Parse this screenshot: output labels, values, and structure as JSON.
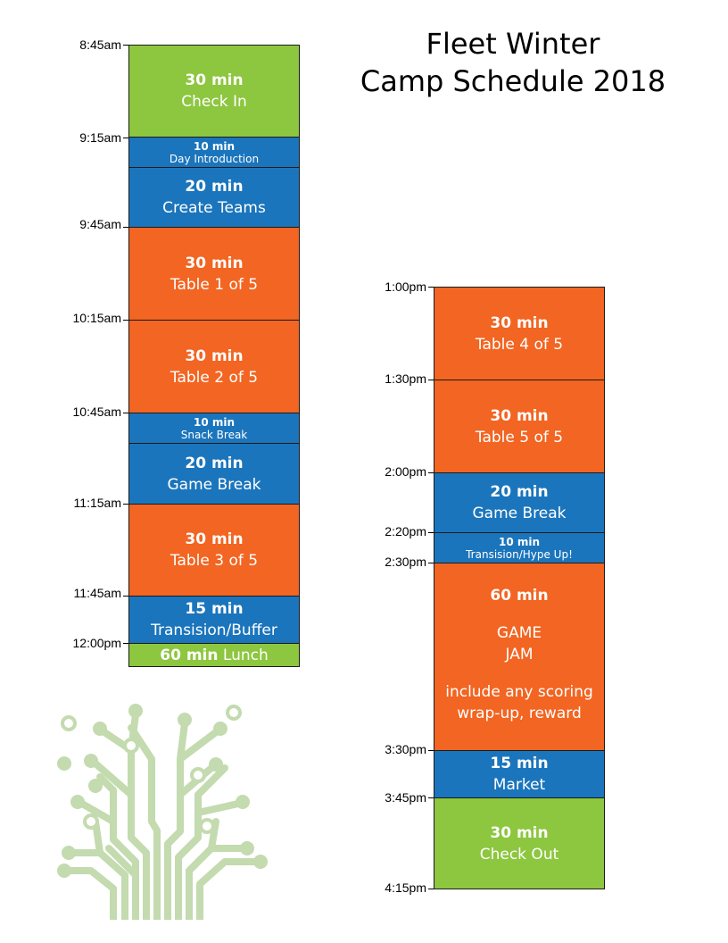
{
  "title": {
    "line1": "Fleet Winter",
    "line2": "Camp Schedule 2018"
  },
  "left_times": [
    "8:45am",
    "9:15am",
    "9:45am",
    "10:15am",
    "10:45am",
    "11:15am",
    "11:45am",
    "12:00pm"
  ],
  "right_times": [
    "1:00pm",
    "1:30pm",
    "2:00pm",
    "2:20pm",
    "2:30pm",
    "3:30pm",
    "3:45pm",
    "4:15pm"
  ],
  "left_blocks": [
    {
      "duration": "30 min",
      "label": "Check In",
      "color": "green"
    },
    {
      "duration": "10 min",
      "label": "Day Introduction",
      "color": "blue"
    },
    {
      "duration": "20 min",
      "label": "Create Teams",
      "color": "blue"
    },
    {
      "duration": "30 min",
      "label": "Table 1 of 5",
      "color": "orange"
    },
    {
      "duration": "30 min",
      "label": "Table 2 of 5",
      "color": "orange"
    },
    {
      "duration": "10 min",
      "label": "Snack Break",
      "color": "blue"
    },
    {
      "duration": "20 min",
      "label": "Game Break",
      "color": "blue"
    },
    {
      "duration": "30 min",
      "label": "Table 3 of 5",
      "color": "orange"
    },
    {
      "duration": "15 min",
      "label": "Transision/Buffer",
      "color": "blue"
    },
    {
      "duration": "60 min",
      "label": "Lunch",
      "color": "green"
    }
  ],
  "right_blocks": [
    {
      "duration": "30 min",
      "label": "Table 4 of 5",
      "color": "orange"
    },
    {
      "duration": "30 min",
      "label": "Table 5 of 5",
      "color": "orange"
    },
    {
      "duration": "20 min",
      "label": "Game Break",
      "color": "blue"
    },
    {
      "duration": "10 min",
      "label": "Transision/Hype Up!",
      "color": "blue"
    },
    {
      "duration": "60 min",
      "label_lines": [
        "GAME",
        "JAM"
      ],
      "note_lines": [
        "include any scoring",
        "wrap-up, reward"
      ],
      "color": "orange"
    },
    {
      "duration": "15 min",
      "label": "Market",
      "color": "blue"
    },
    {
      "duration": "30 min",
      "label": "Check Out",
      "color": "green"
    }
  ],
  "colors": {
    "green": "#8dc63f",
    "blue": "#1b75bc",
    "orange": "#f26522",
    "tree": "#c3dbaf"
  }
}
